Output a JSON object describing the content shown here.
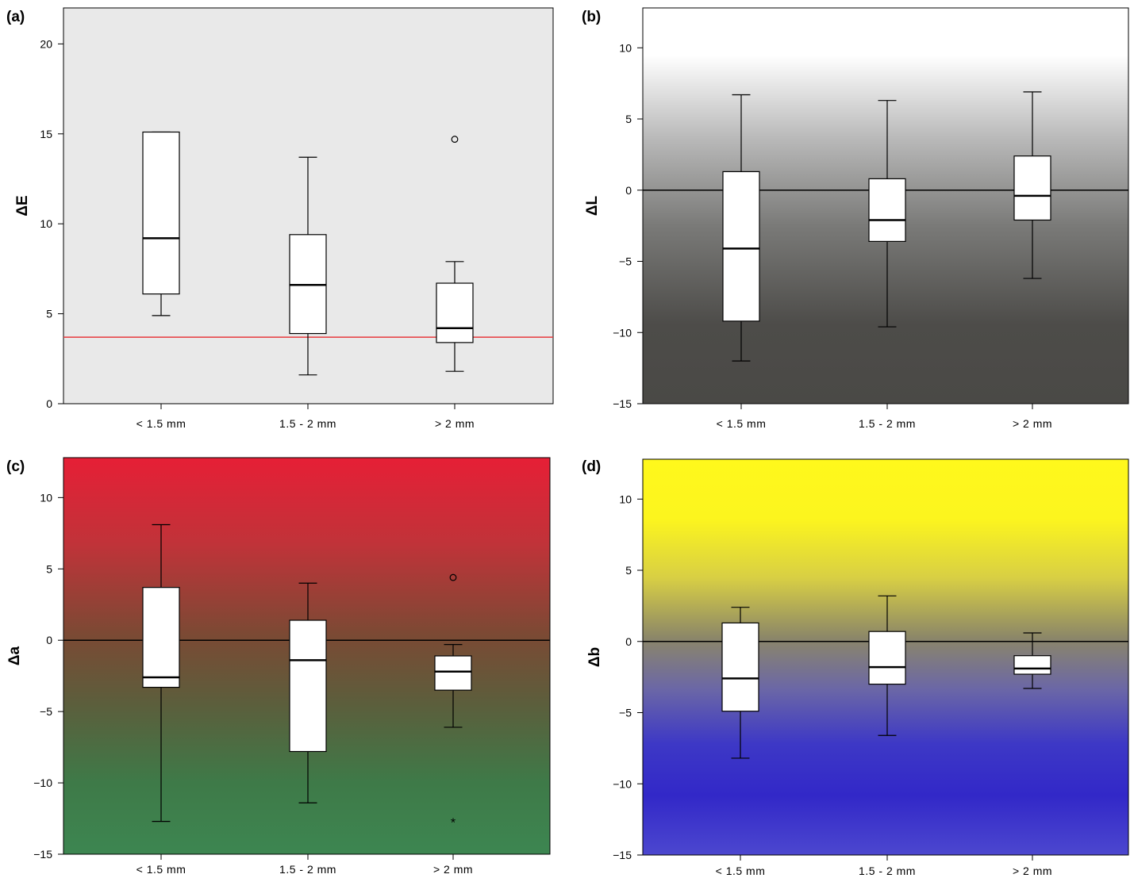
{
  "chart_data": [
    {
      "type": "box",
      "panel_label": "(a)",
      "ylabel": "ΔE",
      "categories": [
        "< 1.5 mm",
        "1.5 - 2 mm",
        "> 2 mm"
      ],
      "ylim": [
        0,
        22
      ],
      "yticks": [
        0,
        5,
        10,
        15,
        20
      ],
      "reference_line": {
        "y": 3.7,
        "color": "#e8393d"
      },
      "background": {
        "stops": [
          [
            "#e9e9e9",
            0
          ],
          [
            "#e9e9e9",
            1
          ]
        ]
      },
      "boxes": [
        {
          "whisker_low": 4.9,
          "q1": 6.1,
          "median": 9.2,
          "q3": 15.1,
          "whisker_high": 15.1,
          "outliers": [],
          "extremes": []
        },
        {
          "whisker_low": 1.6,
          "q1": 3.9,
          "median": 6.6,
          "q3": 9.4,
          "whisker_high": 13.7,
          "outliers": [],
          "extremes": []
        },
        {
          "whisker_low": 1.8,
          "q1": 3.4,
          "median": 4.2,
          "q3": 6.7,
          "whisker_high": 7.9,
          "outliers": [
            14.7
          ],
          "extremes": []
        }
      ]
    },
    {
      "type": "box",
      "panel_label": "(b)",
      "ylabel": "ΔL",
      "categories": [
        "< 1.5 mm",
        "1.5 - 2 mm",
        "> 2 mm"
      ],
      "ylim": [
        -15,
        12.8
      ],
      "yticks": [
        -15,
        -10,
        -5,
        0,
        5,
        10
      ],
      "zero_line": true,
      "background": {
        "stops": [
          [
            "#ffffff",
            0
          ],
          [
            "#ffffff",
            0.12
          ],
          [
            "#b9b9b9",
            0.33
          ],
          [
            "#7a7a78",
            0.55
          ],
          [
            "#4d4c49",
            0.8
          ],
          [
            "#4a4946",
            1
          ]
        ]
      },
      "boxes": [
        {
          "whisker_low": -12.0,
          "q1": -9.2,
          "median": -4.1,
          "q3": 1.3,
          "whisker_high": 6.7,
          "outliers": [],
          "extremes": []
        },
        {
          "whisker_low": -9.6,
          "q1": -3.6,
          "median": -2.1,
          "q3": 0.8,
          "whisker_high": 6.3,
          "outliers": [],
          "extremes": []
        },
        {
          "whisker_low": -6.2,
          "q1": -2.1,
          "median": -0.4,
          "q3": 2.4,
          "whisker_high": 6.9,
          "outliers": [],
          "extremes": []
        }
      ]
    },
    {
      "type": "box",
      "panel_label": "(c)",
      "ylabel": "Δa",
      "categories": [
        "< 1.5 mm",
        "1.5 - 2 mm",
        "> 2 mm"
      ],
      "ylim": [
        -15,
        12.8
      ],
      "yticks": [
        -15,
        -10,
        -5,
        0,
        5,
        10
      ],
      "zero_line": true,
      "background": {
        "stops": [
          [
            "#e61f36",
            0
          ],
          [
            "#c03339",
            0.22
          ],
          [
            "#7a4a34",
            0.45
          ],
          [
            "#5c5e3c",
            0.62
          ],
          [
            "#3e7a48",
            0.82
          ],
          [
            "#3d8651",
            1
          ]
        ]
      },
      "boxes": [
        {
          "whisker_low": -12.7,
          "q1": -3.3,
          "median": -2.6,
          "q3": 3.7,
          "whisker_high": 8.1,
          "outliers": [],
          "extremes": []
        },
        {
          "whisker_low": -11.4,
          "q1": -7.8,
          "median": -1.4,
          "q3": 1.4,
          "whisker_high": 4.0,
          "outliers": [],
          "extremes": []
        },
        {
          "whisker_low": -6.1,
          "q1": -3.5,
          "median": -2.2,
          "q3": -1.1,
          "whisker_high": -0.3,
          "outliers": [
            4.4
          ],
          "extremes": [
            -12.7
          ]
        }
      ]
    },
    {
      "type": "box",
      "panel_label": "(d)",
      "ylabel": "Δb",
      "categories": [
        "< 1.5 mm",
        "1.5 - 2 mm",
        "> 2 mm"
      ],
      "ylim": [
        -15,
        12.8
      ],
      "yticks": [
        -15,
        -10,
        -5,
        0,
        5,
        10
      ],
      "zero_line": true,
      "background": {
        "stops": [
          [
            "#fff81c",
            0
          ],
          [
            "#fcf51e",
            0.15
          ],
          [
            "#d8cf44",
            0.3
          ],
          [
            "#8c8768",
            0.45
          ],
          [
            "#6b67a6",
            0.58
          ],
          [
            "#3d38c6",
            0.72
          ],
          [
            "#3228c8",
            0.85
          ],
          [
            "#4c47cf",
            1
          ]
        ]
      },
      "boxes": [
        {
          "whisker_low": -8.2,
          "q1": -4.9,
          "median": -2.6,
          "q3": 1.3,
          "whisker_high": 2.4,
          "outliers": [],
          "extremes": []
        },
        {
          "whisker_low": -6.6,
          "q1": -3.0,
          "median": -1.8,
          "q3": 0.7,
          "whisker_high": 3.2,
          "outliers": [],
          "extremes": []
        },
        {
          "whisker_low": -3.3,
          "q1": -2.3,
          "median": -1.9,
          "q3": -1.0,
          "whisker_high": 0.6,
          "outliers": [],
          "extremes": []
        }
      ]
    }
  ]
}
